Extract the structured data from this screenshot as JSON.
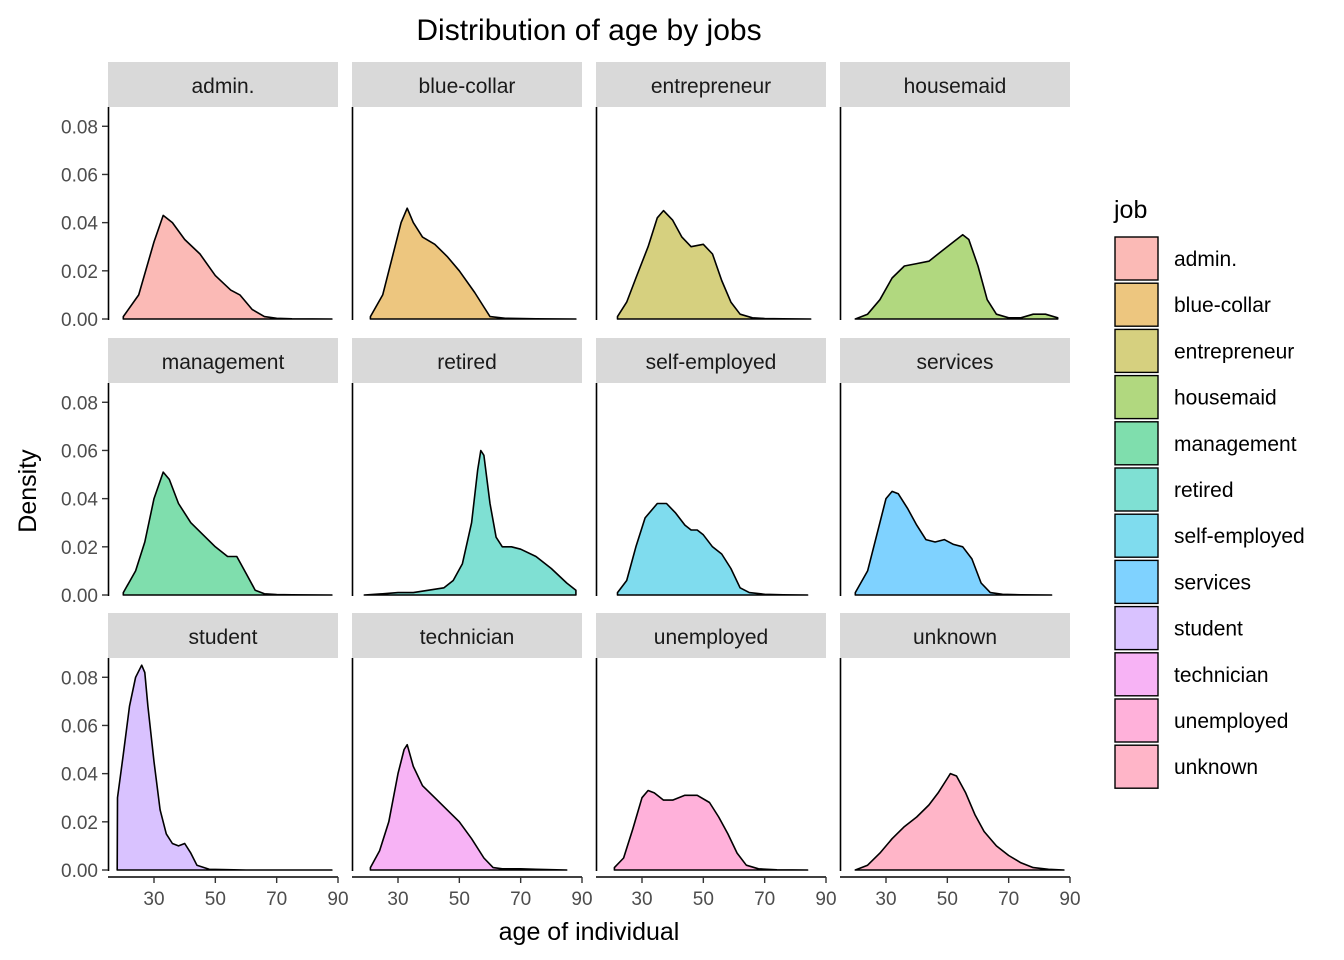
{
  "chart_data": {
    "type": "area",
    "title": "Distribution of age by jobs",
    "xlabel": "age of individual",
    "ylabel": "Density",
    "xlim": [
      15,
      90
    ],
    "ylim": [
      0,
      0.088
    ],
    "x_ticks": [
      30,
      50,
      70,
      90
    ],
    "y_ticks": [
      0.0,
      0.02,
      0.04,
      0.06,
      0.08
    ],
    "y_tick_labels": [
      "0.00",
      "0.02",
      "0.04",
      "0.06",
      "0.08"
    ],
    "grid": false,
    "legend_title": "job",
    "legend_position": "right",
    "facet_layout": {
      "rows": 3,
      "cols": 4
    },
    "series": [
      {
        "name": "admin.",
        "color": "#F8766D",
        "x": [
          20,
          25,
          30,
          33,
          36,
          40,
          45,
          50,
          55,
          58,
          62,
          66,
          70,
          75,
          88
        ],
        "y": [
          0.001,
          0.01,
          0.032,
          0.043,
          0.04,
          0.033,
          0.027,
          0.018,
          0.012,
          0.01,
          0.004,
          0.001,
          0.0003,
          0.0001,
          0.0
        ]
      },
      {
        "name": "blue-collar",
        "color": "#DB8E00",
        "x": [
          21,
          25,
          28,
          31,
          33,
          35,
          38,
          42,
          46,
          50,
          55,
          58,
          60,
          65,
          75,
          88
        ],
        "y": [
          0.001,
          0.01,
          0.025,
          0.04,
          0.046,
          0.04,
          0.034,
          0.031,
          0.026,
          0.02,
          0.011,
          0.005,
          0.001,
          0.0003,
          0.0001,
          0.0
        ]
      },
      {
        "name": "entrepreneur",
        "color": "#AEA200",
        "x": [
          22,
          25,
          28,
          32,
          35,
          37,
          40,
          43,
          46,
          50,
          53,
          56,
          59,
          62,
          66,
          70,
          76,
          85
        ],
        "y": [
          0.001,
          0.007,
          0.017,
          0.03,
          0.042,
          0.045,
          0.041,
          0.034,
          0.03,
          0.031,
          0.027,
          0.016,
          0.007,
          0.002,
          0.0005,
          0.0002,
          0.0001,
          0.0
        ]
      },
      {
        "name": "housemaid",
        "color": "#64B200",
        "x": [
          20,
          24,
          28,
          32,
          36,
          40,
          44,
          48,
          52,
          55,
          57,
          60,
          63,
          66,
          70,
          74,
          78,
          82,
          86
        ],
        "y": [
          0.0,
          0.002,
          0.008,
          0.017,
          0.022,
          0.023,
          0.024,
          0.028,
          0.032,
          0.035,
          0.033,
          0.022,
          0.008,
          0.002,
          0.0005,
          0.0005,
          0.002,
          0.002,
          0.0005
        ]
      },
      {
        "name": "management",
        "color": "#00BD5C",
        "x": [
          20,
          24,
          27,
          30,
          33,
          35,
          38,
          42,
          46,
          50,
          54,
          57,
          60,
          63,
          66,
          70,
          75,
          88
        ],
        "y": [
          0.001,
          0.01,
          0.022,
          0.04,
          0.051,
          0.048,
          0.038,
          0.03,
          0.025,
          0.02,
          0.016,
          0.016,
          0.009,
          0.002,
          0.0005,
          0.0002,
          0.0001,
          0.0
        ]
      },
      {
        "name": "retired",
        "color": "#00C1A7",
        "x": [
          19,
          25,
          30,
          35,
          40,
          45,
          48,
          51,
          54,
          56,
          57,
          58,
          60,
          62,
          64,
          67,
          70,
          75,
          80,
          85,
          88
        ],
        "y": [
          0.0,
          0.0005,
          0.001,
          0.001,
          0.002,
          0.003,
          0.006,
          0.013,
          0.03,
          0.052,
          0.06,
          0.058,
          0.038,
          0.024,
          0.02,
          0.02,
          0.019,
          0.016,
          0.011,
          0.005,
          0.002
        ]
      },
      {
        "name": "self-employed",
        "color": "#00BADE",
        "x": [
          22,
          25,
          28,
          31,
          35,
          38,
          41,
          44,
          46,
          48,
          50,
          53,
          56,
          59,
          62,
          65,
          70,
          76,
          84
        ],
        "y": [
          0.001,
          0.006,
          0.02,
          0.032,
          0.038,
          0.038,
          0.034,
          0.029,
          0.027,
          0.027,
          0.025,
          0.02,
          0.017,
          0.011,
          0.003,
          0.001,
          0.0003,
          0.0001,
          0.0
        ]
      },
      {
        "name": "services",
        "color": "#00A6FF",
        "x": [
          20,
          24,
          27,
          30,
          32,
          34,
          37,
          40,
          43,
          46,
          49,
          52,
          55,
          58,
          61,
          64,
          68,
          74,
          84
        ],
        "y": [
          0.001,
          0.01,
          0.025,
          0.04,
          0.043,
          0.042,
          0.036,
          0.029,
          0.023,
          0.022,
          0.023,
          0.021,
          0.02,
          0.015,
          0.005,
          0.001,
          0.0003,
          0.0001,
          0.0
        ]
      },
      {
        "name": "student",
        "color": "#B385FF",
        "x": [
          18,
          18.1,
          20,
          22,
          24,
          26,
          27,
          28,
          30,
          32,
          34,
          36,
          38,
          40,
          42,
          44,
          48,
          60,
          88
        ],
        "y": [
          0.0,
          0.03,
          0.048,
          0.068,
          0.08,
          0.085,
          0.082,
          0.068,
          0.045,
          0.025,
          0.015,
          0.011,
          0.01,
          0.011,
          0.007,
          0.002,
          0.0003,
          0.0,
          0.0
        ]
      },
      {
        "name": "technician",
        "color": "#EF67EB",
        "x": [
          21,
          24,
          27,
          30,
          32,
          33,
          35,
          38,
          42,
          46,
          50,
          54,
          58,
          61,
          64,
          70,
          75,
          85
        ],
        "y": [
          0.001,
          0.008,
          0.02,
          0.04,
          0.05,
          0.052,
          0.043,
          0.035,
          0.03,
          0.025,
          0.02,
          0.013,
          0.005,
          0.001,
          0.0005,
          0.0005,
          0.0003,
          0.0
        ]
      },
      {
        "name": "unemployed",
        "color": "#FF63B6",
        "x": [
          21,
          24,
          27,
          30,
          32,
          34,
          37,
          40,
          44,
          48,
          52,
          55,
          58,
          61,
          64,
          68,
          74,
          84
        ],
        "y": [
          0.001,
          0.005,
          0.017,
          0.03,
          0.033,
          0.032,
          0.029,
          0.029,
          0.031,
          0.031,
          0.028,
          0.022,
          0.015,
          0.007,
          0.002,
          0.0005,
          0.0001,
          0.0
        ]
      },
      {
        "name": "unknown",
        "color": "#FF6C91",
        "x": [
          20,
          24,
          28,
          32,
          36,
          40,
          44,
          47,
          50,
          51,
          53,
          56,
          59,
          62,
          66,
          70,
          74,
          78,
          83,
          88
        ],
        "y": [
          0.0,
          0.002,
          0.007,
          0.013,
          0.018,
          0.022,
          0.027,
          0.032,
          0.038,
          0.04,
          0.039,
          0.032,
          0.023,
          0.016,
          0.01,
          0.006,
          0.003,
          0.001,
          0.0003,
          0.0
        ]
      }
    ]
  }
}
